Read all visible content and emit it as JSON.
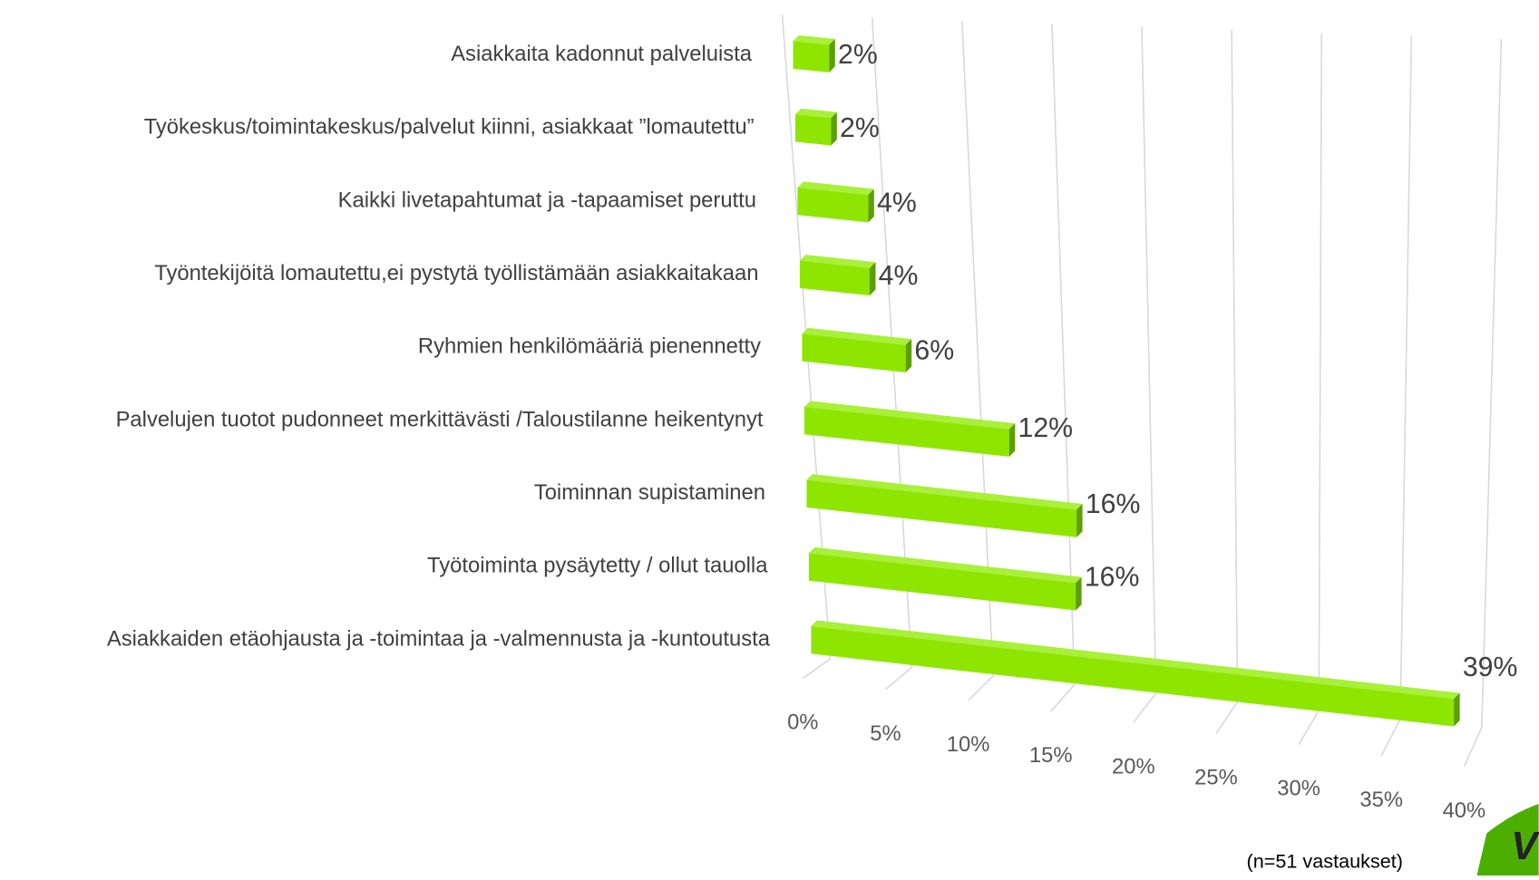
{
  "chart_data": {
    "type": "bar3d",
    "categories": [
      "Asiakkaita kadonnut palveluista",
      "Työkeskus/toimintakeskus/palvelut kiinni, asiakkaat ”lomautettu”",
      "Kaikki livetapahtumat ja -tapaamiset peruttu",
      "Työntekijöitä lomautettu,ei pystytä työllistämään asiakkaitakaan",
      "Ryhmien henkilömääriä pienennetty",
      "Palvelujen tuotot pudonneet merkittävästi /Taloustilanne heikentynyt",
      "Toiminnan supistaminen",
      "Työtoiminta pysäytetty / ollut tauolla",
      "Asiakkaiden etäohjausta ja -toimintaa ja -valmennusta ja -kuntoutusta"
    ],
    "values": [
      2,
      2,
      4,
      4,
      6,
      12,
      16,
      16,
      39
    ],
    "value_labels": [
      "2%",
      "2%",
      "4%",
      "4%",
      "6%",
      "12%",
      "16%",
      "16%",
      "39%"
    ],
    "color": "#8ee600",
    "xlim": [
      0,
      40
    ],
    "xticks": [
      {
        "value": 0,
        "label": "0%"
      },
      {
        "value": 5,
        "label": "5%"
      },
      {
        "value": 10,
        "label": "10%"
      },
      {
        "value": 15,
        "label": "15%"
      },
      {
        "value": 20,
        "label": "20%"
      },
      {
        "value": 25,
        "label": "25%"
      },
      {
        "value": 30,
        "label": "30%"
      },
      {
        "value": 35,
        "label": "35%"
      },
      {
        "value": 40,
        "label": "40%"
      }
    ],
    "grid": true,
    "note": "(n=51 vastaukset)"
  }
}
